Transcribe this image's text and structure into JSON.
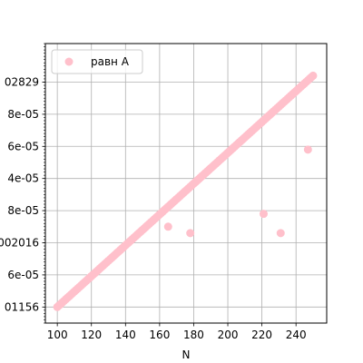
{
  "chart_data": {
    "type": "scatter",
    "title": "",
    "xlabel": "N",
    "ylabel": "",
    "grid": true,
    "legend_position": "top-left",
    "xlim": [
      93,
      258
    ],
    "ylim": [
      -0.5,
      8.2
    ],
    "x_ticks": [
      100,
      120,
      140,
      160,
      180,
      200,
      220,
      240
    ],
    "y_tick_labels": [
      {
        "index": 0,
        "label": "01156"
      },
      {
        "index": 1,
        "label": "6e-05"
      },
      {
        "index": 2,
        "label": "002016"
      },
      {
        "index": 3,
        "label": "8e-05"
      },
      {
        "index": 4,
        "label": "4e-05"
      },
      {
        "index": 5,
        "label": "6e-05"
      },
      {
        "index": 6,
        "label": "8e-05"
      },
      {
        "index": 7,
        "label": "02829"
      }
    ],
    "series": [
      {
        "name": "равн A",
        "color": "#ffc0cb",
        "trend": {
          "x_start": 100,
          "x_end": 250,
          "y_start": 0.0,
          "y_end": 7.2
        },
        "outliers": [
          {
            "x": 165,
            "y": 2.5
          },
          {
            "x": 178,
            "y": 2.3
          },
          {
            "x": 221,
            "y": 2.9
          },
          {
            "x": 231,
            "y": 2.3
          },
          {
            "x": 247,
            "y": 4.9
          }
        ]
      }
    ]
  }
}
